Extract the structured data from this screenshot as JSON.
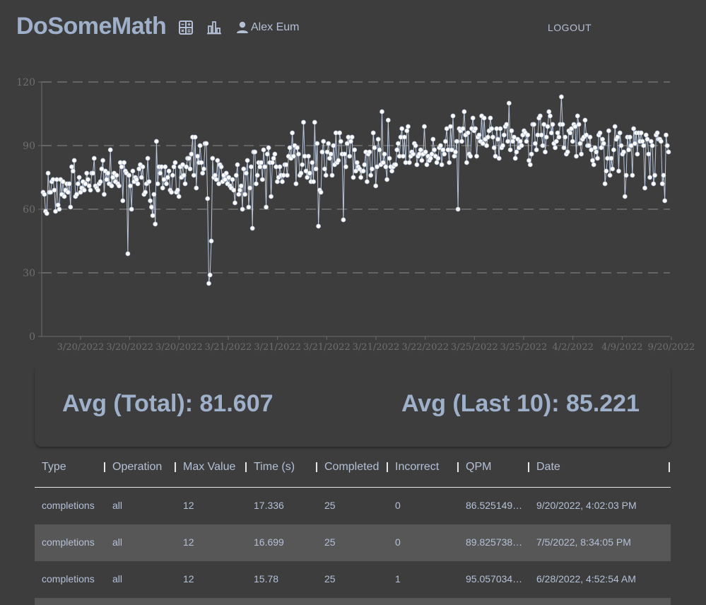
{
  "header": {
    "brand": "DoSomeMath",
    "user_name": "Alex Eum",
    "logout_label": "LOGOUT",
    "icons": [
      "calculator-icon",
      "bar-chart-icon",
      "user-icon"
    ]
  },
  "colors": {
    "background": "#3d3d3d",
    "text": "#b4c0d6",
    "brand": "#9fb0cb",
    "row_alt": "#575757",
    "series": "#b9c6db",
    "point": "#ffffff"
  },
  "chart_data": {
    "type": "line",
    "title": "",
    "xlabel": "",
    "ylabel": "",
    "ylim": [
      0,
      120
    ],
    "yticks": [
      0,
      30,
      60,
      90,
      120
    ],
    "xtick_labels": [
      "3/20/2022",
      "3/20/2022",
      "3/20/2022",
      "3/21/2022",
      "3/21/2022",
      "3/21/2022",
      "3/21/2022",
      "3/22/2022",
      "3/25/2022",
      "3/25/2022",
      "4/2/2022",
      "4/9/2022",
      "9/20/2022"
    ],
    "grid": "horizontal dashed",
    "series": [
      {
        "values": [
          68,
          67,
          59,
          58,
          77,
          68,
          68,
          73,
          74,
          69,
          59,
          74,
          62,
          60,
          74,
          67,
          73,
          66,
          69,
          72,
          68,
          72,
          61,
          80,
          78,
          83,
          66,
          67,
          72,
          75,
          68,
          70,
          73,
          69,
          72,
          77,
          74,
          71,
          69,
          77,
          77,
          84,
          71,
          70,
          69,
          72,
          73,
          79,
          83,
          67,
          78,
          74,
          77,
          72,
          88,
          71,
          75,
          77,
          73,
          76,
          72,
          71,
          82,
          80,
          64,
          82,
          78,
          77,
          39,
          76,
          71,
          60,
          78,
          73,
          75,
          74,
          72,
          79,
          81,
          75,
          80,
          67,
          68,
          72,
          84,
          73,
          64,
          61,
          57,
          67,
          53,
          92,
          72,
          80,
          77,
          80,
          70,
          74,
          80,
          72,
          75,
          78,
          69,
          68,
          76,
          80,
          82,
          68,
          69,
          66,
          80,
          75,
          81,
          76,
          72,
          80,
          84,
          84,
          79,
          86,
          94,
          76,
          94,
          70,
          85,
          82,
          90,
          82,
          77,
          79,
          91,
          91,
          65,
          25,
          29,
          45,
          84,
          75,
          76,
          74,
          83,
          72,
          81,
          80,
          73,
          76,
          74,
          77,
          72,
          75,
          71,
          70,
          74,
          69,
          63,
          76,
          81,
          67,
          69,
          71,
          60,
          79,
          67,
          77,
          83,
          61,
          70,
          80,
          51,
          87,
          87,
          72,
          76,
          82,
          80,
          82,
          74,
          88,
          80,
          61,
          86,
          89,
          82,
          66,
          82,
          84,
          86,
          80,
          73,
          75,
          80,
          76,
          73,
          76,
          81,
          81,
          76,
          85,
          89,
          84,
          96,
          85,
          90,
          72,
          89,
          86,
          76,
          77,
          81,
          101,
          85,
          78,
          75,
          85,
          77,
          73,
          82,
          73,
          101,
          79,
          91,
          52,
          69,
          68,
          87,
          92,
          79,
          76,
          87,
          91,
          84,
          86,
          76,
          90,
          81,
          96,
          82,
          83,
          96,
          92,
          86,
          55,
          86,
          80,
          91,
          94,
          85,
          92,
          94,
          75,
          88,
          78,
          82,
          80,
          79,
          75,
          78,
          78,
          81,
          87,
          73,
          86,
          87,
          76,
          79,
          96,
          89,
          71,
          80,
          93,
          88,
          81,
          106,
          82,
          86,
          80,
          74,
          102,
          84,
          80,
          78,
          80,
          81,
          81,
          88,
          91,
          85,
          94,
          98,
          85,
          94,
          82,
          97,
          99,
          82,
          85,
          87,
          86,
          91,
          90,
          81,
          85,
          86,
          88,
          83,
          86,
          99,
          87,
          81,
          85,
          83,
          84,
          86,
          93,
          88,
          85,
          82,
          84,
          89,
          90,
          81,
          88,
          86,
          92,
          98,
          88,
          82,
          99,
          88,
          104,
          85,
          87,
          92,
          60,
          98,
          97,
          92,
          98,
          106,
          95,
          82,
          96,
          86,
          85,
          98,
          103,
          97,
          98,
          85,
          94,
          95,
          92,
          104,
          91,
          103,
          93,
          90,
          94,
          97,
          103,
          98,
          94,
          89,
          85,
          98,
          93,
          84,
          98,
          89,
          90,
          95,
          99,
          100,
          92,
          110,
          88,
          97,
          92,
          94,
          84,
          87,
          93,
          89,
          92,
          90,
          95,
          97,
          96,
          92,
          95,
          83,
          81,
          86,
          100,
          100,
          91,
          88,
          95,
          103,
          104,
          95,
          90,
          100,
          87,
          94,
          99,
          106,
          104,
          96,
          100,
          91,
          89,
          92,
          96,
          94,
          100,
          113,
          100,
          89,
          94,
          86,
          87,
          97,
          96,
          98,
          92,
          100,
          99,
          85,
          104,
          100,
          91,
          86,
          93,
          94,
          102,
          95,
          90,
          90,
          94,
          88,
          83,
          81,
          89,
          87,
          84,
          95,
          96,
          89,
          93,
          91,
          72,
          78,
          84,
          97,
          76,
          84,
          79,
          88,
          99,
          93,
          94,
          78,
          96,
          90,
          86,
          87,
          66,
          76,
          94,
          88,
          94,
          90,
          76,
          98,
          91,
          96,
          86,
          96,
          92,
          96,
          92,
          90,
          70,
          95,
          93,
          86,
          75,
          92,
          90,
          72,
          76,
          95,
          96,
          93,
          93,
          92,
          72,
          76,
          64,
          95,
          90,
          87
        ]
      }
    ]
  },
  "stats": {
    "avg_total": "Avg (Total): 81.607",
    "avg_last10": "Avg (Last 10): 85.221"
  },
  "table": {
    "headers": [
      "Type",
      "Operation",
      "Max Value",
      "Time (s)",
      "Completed",
      "Incorrect",
      "QPM",
      "Date"
    ],
    "rows": [
      [
        "completions",
        "all",
        "12",
        "17.336",
        "25",
        "0",
        "86.525149…",
        "9/20/2022, 4:02:03 PM"
      ],
      [
        "completions",
        "all",
        "12",
        "16.699",
        "25",
        "0",
        "89.825738…",
        "7/5/2022, 8:34:05 PM"
      ],
      [
        "completions",
        "all",
        "12",
        "15.78",
        "25",
        "1",
        "95.057034…",
        "6/28/2022, 4:52:54 AM"
      ]
    ]
  }
}
